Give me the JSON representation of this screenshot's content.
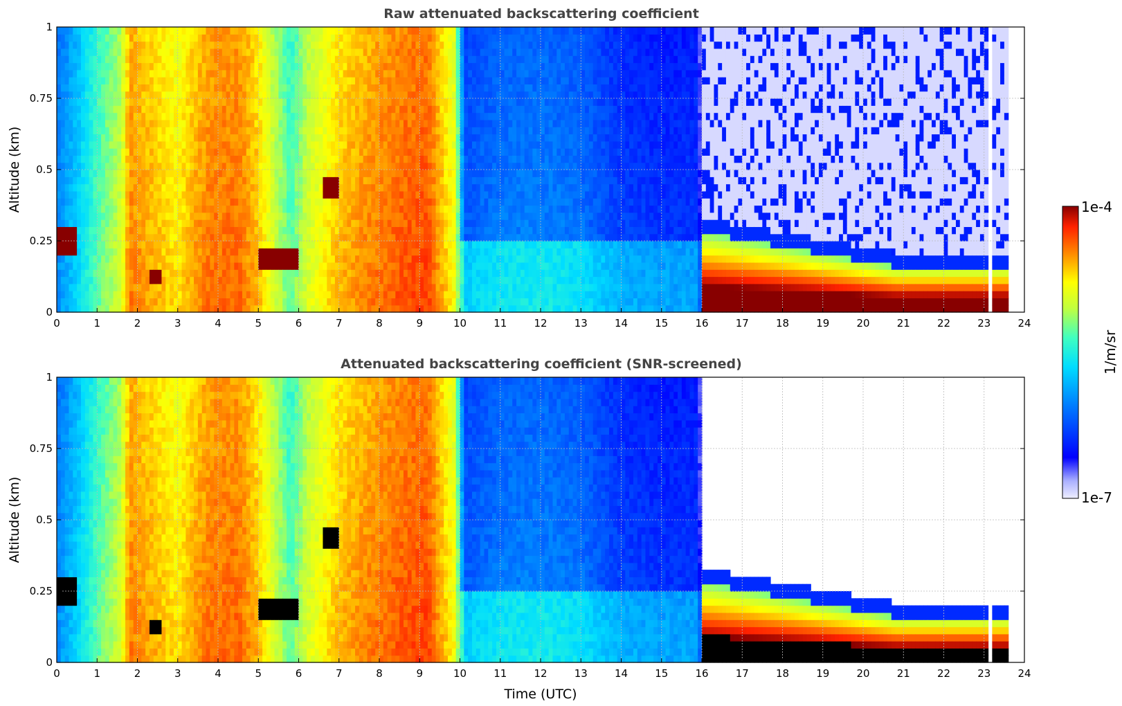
{
  "chart_data": [
    {
      "type": "heatmap",
      "title": "Raw attenuated backscattering coefficient",
      "xlabel": "",
      "ylabel": "Altitude (km)",
      "xlim": [
        0,
        24
      ],
      "ylim": [
        0,
        1
      ],
      "xticks": [
        0,
        1,
        2,
        3,
        4,
        5,
        6,
        7,
        8,
        9,
        10,
        11,
        12,
        13,
        14,
        15,
        16,
        17,
        18,
        19,
        20,
        21,
        22,
        23,
        24
      ],
      "yticks": [
        0,
        0.25,
        0.5,
        0.75,
        1
      ],
      "ytick_labels": [
        "0",
        "0.25",
        "0.5",
        "0.75",
        "1"
      ],
      "grid": true,
      "screened": false
    },
    {
      "type": "heatmap",
      "title": "Attenuated backscattering coefficient (SNR-screened)",
      "xlabel": "Time (UTC)",
      "ylabel": "Altitude (km)",
      "xlim": [
        0,
        24
      ],
      "ylim": [
        0,
        1
      ],
      "xticks": [
        0,
        1,
        2,
        3,
        4,
        5,
        6,
        7,
        8,
        9,
        10,
        11,
        12,
        13,
        14,
        15,
        16,
        17,
        18,
        19,
        20,
        21,
        22,
        23,
        24
      ],
      "yticks": [
        0,
        0.25,
        0.5,
        0.75,
        1
      ],
      "ytick_labels": [
        "0",
        "0.25",
        "0.5",
        "0.75",
        "1"
      ],
      "grid": true,
      "screened": true
    }
  ],
  "colorbar": {
    "label": "1/m/sr",
    "max_label": "1e-4",
    "min_label": "1e-7",
    "scale": "log",
    "colormap": "jet",
    "range": [
      1e-07,
      0.0001
    ]
  }
}
